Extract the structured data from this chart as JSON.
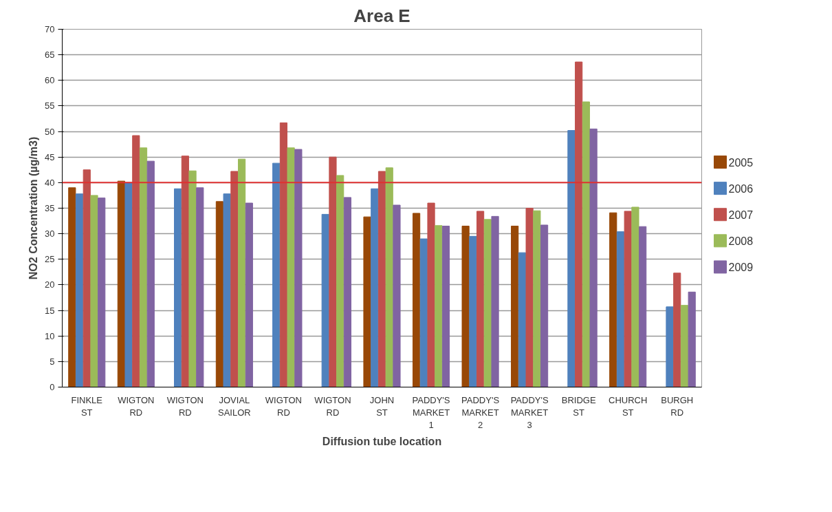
{
  "chart_data": {
    "type": "bar",
    "title": "Area E",
    "xlabel": "Diffusion tube location",
    "ylabel": "NO2 Concentration (µg/m3)",
    "categories": [
      "FINKLE ST",
      "WIGTON RD",
      "WIGTON RD",
      "JOVIAL SAILOR",
      "WIGTON RD",
      "WIGTON RD",
      "JOHN ST",
      "PADDY'S MARKET 1",
      "PADDY'S MARKET 2",
      "PADDY'S MARKET 3",
      "BRIDGE ST",
      "CHURCH ST",
      "BURGH RD"
    ],
    "series": [
      {
        "name": "2005",
        "color": "#984807",
        "values": [
          39,
          40.3,
          null,
          36.3,
          null,
          null,
          33.3,
          34,
          31.5,
          31.5,
          null,
          34.1,
          null
        ]
      },
      {
        "name": "2006",
        "color": "#4f81bd",
        "values": [
          37.8,
          40,
          38.8,
          37.8,
          43.8,
          33.8,
          38.8,
          29,
          29.5,
          26.3,
          50.2,
          30.4,
          15.7
        ]
      },
      {
        "name": "2007",
        "color": "#c0504d",
        "values": [
          42.5,
          49.2,
          45.2,
          42.2,
          51.7,
          45,
          42.2,
          36,
          34.4,
          35,
          63.6,
          34.4,
          22.3
        ]
      },
      {
        "name": "2008",
        "color": "#9bbb59",
        "values": [
          37.5,
          46.8,
          42.3,
          44.6,
          46.8,
          41.4,
          42.9,
          31.6,
          32.8,
          34.5,
          55.8,
          35.2,
          16
        ]
      },
      {
        "name": "2009",
        "color": "#8064a2",
        "values": [
          37,
          44.2,
          39,
          36,
          46.5,
          37.1,
          35.6,
          31.5,
          33.4,
          31.7,
          50.5,
          31.4,
          18.6
        ]
      }
    ],
    "ylim": [
      0,
      70
    ],
    "yticks": [
      0,
      5,
      10,
      15,
      20,
      25,
      30,
      35,
      40,
      45,
      50,
      55,
      60,
      65,
      70
    ],
    "ref_lines": [
      {
        "axis": "y",
        "value": 40,
        "color": "#e03030"
      }
    ],
    "grid": "y",
    "legend": "right"
  }
}
